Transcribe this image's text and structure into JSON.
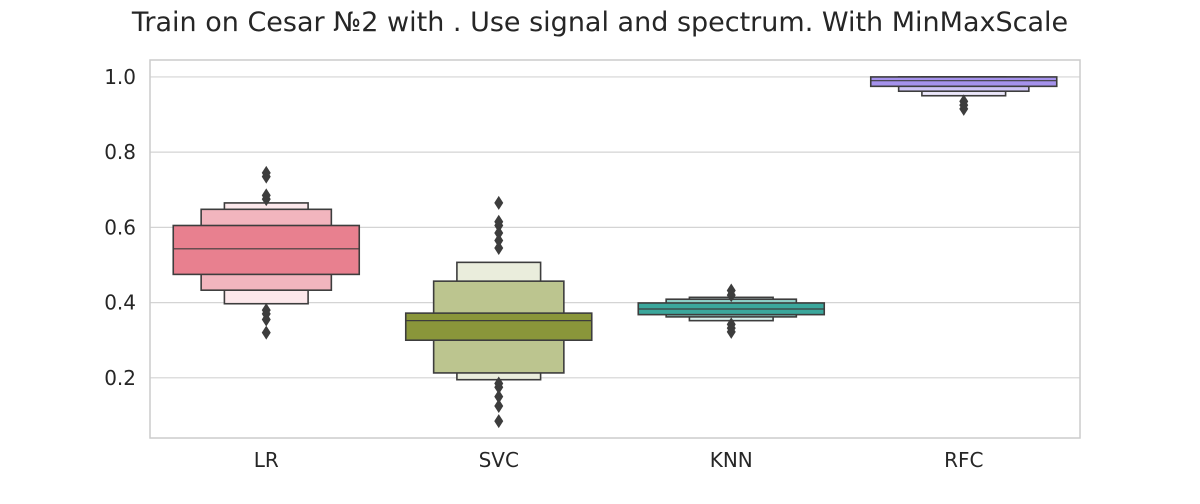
{
  "chart_data": {
    "type": "boxen",
    "title": "Train on Cesar №2 with . Use signal and spectrum. With MinMaxScale",
    "xlabel": "",
    "ylabel": "",
    "categories": [
      "LR",
      "SVC",
      "KNN",
      "RFC"
    ],
    "ylim": [
      0.04,
      1.045
    ],
    "yticks": [
      0.2,
      0.4,
      0.6,
      0.8,
      1.0
    ],
    "ytick_labels": [
      "0.2",
      "0.4",
      "0.6",
      "0.8",
      "1.0"
    ],
    "grid": "horizontal",
    "series": [
      {
        "category": "LR",
        "color": "#e8808f",
        "median": 0.543,
        "boxes": [
          [
            0.475,
            0.605
          ],
          [
            0.433,
            0.648
          ],
          [
            0.397,
            0.665
          ]
        ],
        "box_colors": [
          "#e8808f",
          "#f2b5be",
          "#fce8eb"
        ],
        "outliers": [
          0.32,
          0.355,
          0.37,
          0.38,
          0.675,
          0.685,
          0.735,
          0.745
        ]
      },
      {
        "category": "SVC",
        "color": "#8a963a",
        "median": 0.352,
        "boxes": [
          [
            0.3,
            0.372
          ],
          [
            0.213,
            0.457
          ],
          [
            0.195,
            0.507
          ]
        ],
        "box_colors": [
          "#8a963a",
          "#bcc58f",
          "#eaeddc"
        ],
        "outliers": [
          0.085,
          0.125,
          0.15,
          0.175,
          0.185,
          0.545,
          0.565,
          0.585,
          0.605,
          0.615,
          0.665
        ]
      },
      {
        "category": "KNN",
        "color": "#3ba79c",
        "median": 0.383,
        "boxes": [
          [
            0.368,
            0.399
          ],
          [
            0.362,
            0.409
          ],
          [
            0.352,
            0.414
          ]
        ],
        "box_colors": [
          "#3ba79c",
          "#8fcfc8",
          "#d6eeeb"
        ],
        "outliers": [
          0.322,
          0.332,
          0.342,
          0.42,
          0.432
        ]
      },
      {
        "category": "RFC",
        "color": "#a592ec",
        "median": 0.99,
        "boxes": [
          [
            0.975,
            1.0
          ],
          [
            0.962,
            1.0
          ],
          [
            0.95,
            1.0
          ]
        ],
        "box_colors": [
          "#a592ec",
          "#cdc3f5",
          "#ece8fc"
        ],
        "outliers": [
          0.915,
          0.925,
          0.935
        ]
      }
    ]
  }
}
